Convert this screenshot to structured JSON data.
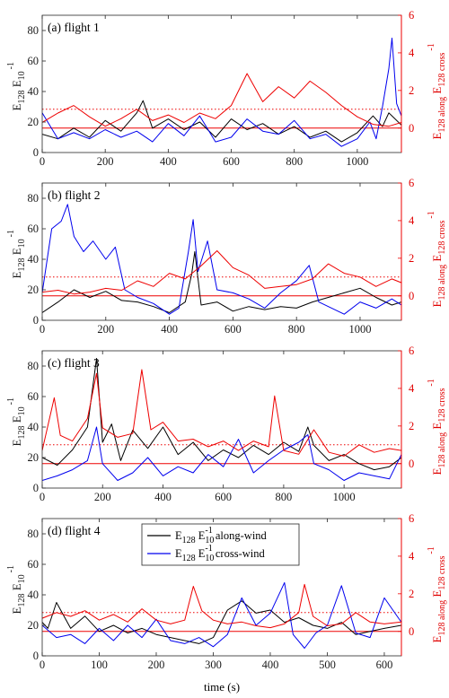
{
  "figure": {
    "xlabel": "time (s)",
    "ylabel_left_main": "E",
    "ylabel_left_sub1": "128",
    "ylabel_left_mid": " E",
    "ylabel_left_sub2": "10",
    "ylabel_left_sup": "-1",
    "ylabel_right_main": "E",
    "ylabel_right_sub1": "128 along",
    "ylabel_right_mid": " E",
    "ylabel_right_sub2": "128 cross",
    "ylabel_right_sup": "-1",
    "legend": {
      "along": {
        "E": "E",
        "sub1": "128",
        "E2": " E",
        "sub2": "10",
        "sup": "-1",
        "rest": " along-wind"
      },
      "cross": {
        "E": "E",
        "sub1": "128",
        "E2": " E",
        "sub2": "10",
        "sup": "-1",
        "rest": " cross-wind"
      }
    },
    "colors": {
      "along": "#000000",
      "cross": "#0000ee",
      "ratio": "#ee0000"
    }
  },
  "chart_data": [
    {
      "type": "line",
      "title": "(a) flight 1",
      "xlim": [
        0,
        1140
      ],
      "x_ticks": [
        0,
        200,
        400,
        600,
        800,
        1000
      ],
      "ylim_left": [
        0,
        90
      ],
      "y_ticks_left": [
        0,
        20,
        40,
        60,
        80
      ],
      "ylim_right": [
        -1.3,
        6
      ],
      "y_ticks_right": [
        0,
        2,
        4,
        6
      ],
      "reference_lines_right": [
        {
          "value": 0,
          "style": "solid"
        },
        {
          "value": 1,
          "style": "dotted"
        }
      ],
      "series": [
        {
          "name": "along-wind",
          "axis": "left",
          "color": "#000000",
          "x": [
            0,
            50,
            100,
            150,
            200,
            250,
            300,
            320,
            350,
            400,
            450,
            500,
            550,
            600,
            650,
            700,
            750,
            800,
            850,
            900,
            950,
            1000,
            1050,
            1080,
            1100,
            1140
          ],
          "y": [
            12,
            9,
            16,
            10,
            21,
            14,
            26,
            34,
            16,
            22,
            15,
            20,
            10,
            22,
            15,
            19,
            12,
            17,
            10,
            14,
            7,
            13,
            24,
            17,
            26,
            18
          ]
        },
        {
          "name": "cross-wind",
          "axis": "left",
          "color": "#0000ee",
          "x": [
            0,
            50,
            100,
            150,
            200,
            250,
            300,
            350,
            400,
            450,
            500,
            550,
            600,
            650,
            700,
            750,
            800,
            850,
            900,
            950,
            1000,
            1040,
            1060,
            1080,
            1100,
            1110,
            1125,
            1140
          ],
          "y": [
            26,
            9,
            13,
            9,
            15,
            10,
            14,
            7,
            19,
            11,
            24,
            7,
            10,
            22,
            14,
            12,
            21,
            9,
            12,
            4,
            9,
            20,
            9,
            30,
            55,
            75,
            32,
            24
          ]
        },
        {
          "name": "ratio",
          "axis": "right",
          "color": "#ee0000",
          "x": [
            0,
            50,
            100,
            150,
            200,
            250,
            300,
            350,
            400,
            450,
            500,
            550,
            600,
            650,
            700,
            750,
            800,
            850,
            900,
            950,
            1000,
            1050,
            1100,
            1140
          ],
          "y": [
            0.3,
            0.8,
            1.2,
            0.6,
            0.1,
            0.5,
            1.0,
            0.4,
            0.7,
            0.3,
            0.8,
            0.5,
            1.2,
            2.9,
            1.4,
            2.2,
            1.6,
            2.5,
            1.9,
            1.2,
            0.6,
            0.2,
            0.1,
            0.3
          ]
        }
      ]
    },
    {
      "type": "line",
      "title": "(b) flight 2",
      "xlim": [
        0,
        1130
      ],
      "x_ticks": [
        0,
        200,
        400,
        600,
        800,
        1000
      ],
      "ylim_left": [
        0,
        90
      ],
      "y_ticks_left": [
        0,
        20,
        40,
        60,
        80
      ],
      "ylim_right": [
        -1.3,
        6
      ],
      "y_ticks_right": [
        0,
        2,
        4,
        6
      ],
      "reference_lines_right": [
        {
          "value": 0,
          "style": "solid"
        },
        {
          "value": 1,
          "style": "dotted"
        }
      ],
      "series": [
        {
          "name": "along-wind",
          "axis": "left",
          "color": "#000000",
          "x": [
            0,
            50,
            100,
            150,
            200,
            250,
            300,
            350,
            400,
            450,
            470,
            480,
            500,
            550,
            600,
            650,
            700,
            750,
            800,
            850,
            900,
            950,
            1000,
            1050,
            1100,
            1130
          ],
          "y": [
            5,
            12,
            20,
            15,
            19,
            13,
            12,
            9,
            5,
            12,
            30,
            45,
            10,
            12,
            6,
            9,
            7,
            9,
            8,
            12,
            15,
            18,
            21,
            15,
            10,
            12
          ]
        },
        {
          "name": "cross-wind",
          "axis": "left",
          "color": "#0000ee",
          "x": [
            0,
            30,
            60,
            80,
            100,
            130,
            160,
            200,
            230,
            260,
            300,
            350,
            400,
            430,
            460,
            475,
            490,
            520,
            550,
            600,
            650,
            700,
            750,
            800,
            840,
            870,
            900,
            950,
            1000,
            1050,
            1100,
            1130
          ],
          "y": [
            18,
            60,
            65,
            76,
            55,
            45,
            52,
            40,
            48,
            20,
            15,
            11,
            4,
            8,
            45,
            66,
            32,
            52,
            20,
            18,
            14,
            8,
            18,
            26,
            36,
            12,
            9,
            4,
            12,
            8,
            14,
            10
          ]
        },
        {
          "name": "ratio",
          "axis": "right",
          "color": "#ee0000",
          "x": [
            0,
            50,
            100,
            150,
            200,
            250,
            300,
            350,
            400,
            450,
            500,
            550,
            600,
            650,
            700,
            750,
            800,
            850,
            900,
            950,
            1000,
            1050,
            1100,
            1130
          ],
          "y": [
            0.2,
            0.3,
            0.1,
            0.2,
            0.4,
            0.3,
            0.8,
            0.5,
            1.2,
            0.9,
            1.6,
            2.4,
            1.5,
            1.1,
            0.4,
            0.5,
            0.6,
            0.9,
            1.7,
            1.2,
            1.0,
            0.5,
            0.9,
            0.7
          ]
        }
      ]
    },
    {
      "type": "line",
      "title": "(c) flight 3",
      "xlim": [
        0,
        1190
      ],
      "x_ticks": [
        0,
        200,
        400,
        600,
        800,
        1000
      ],
      "ylim_left": [
        0,
        90
      ],
      "y_ticks_left": [
        0,
        20,
        40,
        60,
        80
      ],
      "ylim_right": [
        -1.3,
        6
      ],
      "y_ticks_right": [
        0,
        2,
        4,
        6
      ],
      "reference_lines_right": [
        {
          "value": 0,
          "style": "solid"
        },
        {
          "value": 1,
          "style": "dotted"
        }
      ],
      "series": [
        {
          "name": "along-wind",
          "axis": "left",
          "color": "#000000",
          "x": [
            0,
            50,
            100,
            150,
            180,
            200,
            230,
            260,
            300,
            350,
            400,
            450,
            500,
            550,
            600,
            650,
            700,
            750,
            800,
            850,
            880,
            900,
            950,
            1000,
            1050,
            1100,
            1150,
            1190
          ],
          "y": [
            20,
            15,
            25,
            40,
            85,
            30,
            42,
            18,
            38,
            26,
            40,
            22,
            30,
            18,
            25,
            20,
            28,
            22,
            30,
            24,
            40,
            28,
            18,
            22,
            16,
            12,
            14,
            20
          ]
        },
        {
          "name": "cross-wind",
          "axis": "left",
          "color": "#0000ee",
          "x": [
            0,
            50,
            100,
            150,
            180,
            200,
            250,
            300,
            350,
            400,
            450,
            500,
            550,
            600,
            650,
            700,
            750,
            800,
            850,
            880,
            900,
            950,
            1000,
            1050,
            1100,
            1150,
            1190
          ],
          "y": [
            5,
            8,
            12,
            18,
            40,
            16,
            5,
            10,
            20,
            8,
            14,
            10,
            22,
            14,
            32,
            10,
            18,
            25,
            30,
            35,
            16,
            12,
            5,
            10,
            8,
            6,
            22
          ]
        },
        {
          "name": "ratio",
          "axis": "right",
          "color": "#ee0000",
          "x": [
            0,
            40,
            60,
            100,
            150,
            180,
            200,
            250,
            300,
            330,
            360,
            400,
            450,
            500,
            550,
            600,
            650,
            700,
            750,
            770,
            800,
            850,
            900,
            950,
            1000,
            1050,
            1100,
            1150,
            1190
          ],
          "y": [
            0.7,
            3.5,
            1.5,
            1.2,
            2.4,
            4.8,
            1.9,
            1.4,
            1.6,
            5.0,
            1.8,
            2.2,
            1.2,
            1.3,
            0.9,
            1.2,
            0.7,
            1.2,
            0.9,
            3.6,
            0.7,
            0.5,
            1.8,
            0.6,
            0.4,
            1.0,
            0.6,
            0.8,
            0.7
          ]
        }
      ]
    },
    {
      "type": "line",
      "title": "(d) flight 4",
      "xlim": [
        0,
        630
      ],
      "x_ticks": [
        0,
        100,
        200,
        300,
        400,
        500,
        600
      ],
      "ylim_left": [
        0,
        90
      ],
      "y_ticks_left": [
        0,
        20,
        40,
        60,
        80
      ],
      "ylim_right": [
        -1.3,
        6
      ],
      "y_ticks_right": [
        0,
        2,
        4,
        6
      ],
      "reference_lines_right": [
        {
          "value": 0,
          "style": "solid"
        },
        {
          "value": 1,
          "style": "dotted"
        }
      ],
      "series": [
        {
          "name": "along-wind",
          "axis": "left",
          "color": "#000000",
          "x": [
            0,
            10,
            25,
            50,
            75,
            100,
            125,
            150,
            175,
            200,
            225,
            250,
            275,
            300,
            325,
            350,
            375,
            400,
            425,
            450,
            475,
            500,
            525,
            550,
            575,
            600,
            630
          ],
          "y": [
            22,
            18,
            35,
            18,
            26,
            16,
            20,
            15,
            18,
            14,
            12,
            10,
            8,
            12,
            30,
            36,
            28,
            30,
            22,
            25,
            20,
            18,
            22,
            14,
            16,
            18,
            20
          ]
        },
        {
          "name": "cross-wind",
          "axis": "left",
          "color": "#0000ee",
          "x": [
            0,
            25,
            50,
            75,
            100,
            125,
            150,
            175,
            200,
            225,
            250,
            275,
            300,
            325,
            350,
            375,
            400,
            425,
            440,
            460,
            480,
            500,
            525,
            550,
            575,
            600,
            630
          ],
          "y": [
            20,
            12,
            14,
            8,
            18,
            10,
            20,
            12,
            24,
            10,
            8,
            12,
            6,
            14,
            38,
            20,
            28,
            48,
            14,
            5,
            15,
            20,
            46,
            15,
            12,
            38,
            22
          ]
        },
        {
          "name": "ratio",
          "axis": "right",
          "color": "#ee0000",
          "x": [
            0,
            25,
            50,
            75,
            100,
            125,
            150,
            175,
            200,
            225,
            250,
            265,
            280,
            300,
            325,
            350,
            375,
            400,
            425,
            450,
            460,
            475,
            500,
            525,
            550,
            575,
            600,
            630
          ],
          "y": [
            0.7,
            1.0,
            0.8,
            1.1,
            0.6,
            0.9,
            0.5,
            1.2,
            0.6,
            0.4,
            0.6,
            2.4,
            1.1,
            0.6,
            0.4,
            0.5,
            0.3,
            0.2,
            0.4,
            1.0,
            2.5,
            0.8,
            0.3,
            0.4,
            1.0,
            0.5,
            0.4,
            0.5
          ]
        }
      ]
    }
  ]
}
